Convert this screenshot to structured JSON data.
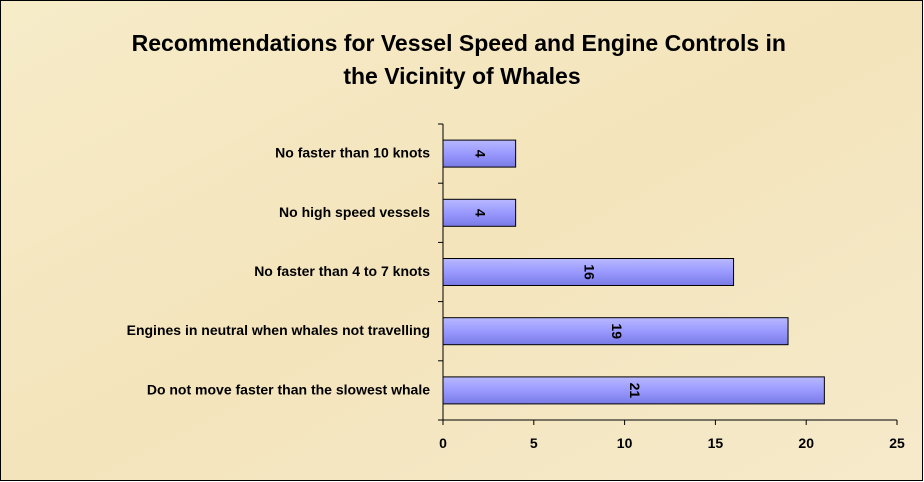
{
  "chart_data": {
    "type": "bar",
    "orientation": "horizontal",
    "title": "Recommendations for Vessel Speed and Engine Controls in the Vicinity of Whales",
    "categories": [
      "No faster than 10 knots",
      "No high speed vessels",
      "No faster than 4 to 7 knots",
      "Engines in neutral when whales not travelling",
      "Do not move faster than the slowest whale"
    ],
    "values": [
      4,
      4,
      16,
      19,
      21
    ],
    "color": "#9999ff",
    "xlim": [
      0,
      25
    ],
    "xticks": [
      0,
      5,
      10,
      15,
      20,
      25
    ],
    "data_labels": true,
    "grid": false
  }
}
